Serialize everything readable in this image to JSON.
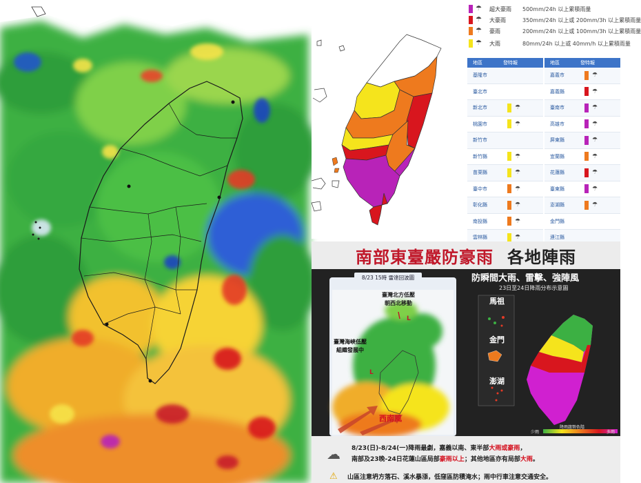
{
  "warning_panel": {
    "legend": [
      {
        "name": "超大豪雨",
        "desc": "500mm/24h 以上累積雨量",
        "color": "#b823b8"
      },
      {
        "name": "大豪雨",
        "desc": "350mm/24h 以上或 200mm/3h 以上累積雨量",
        "color": "#d8161e"
      },
      {
        "name": "豪雨",
        "desc": "200mm/24h 以上或 100mm/3h 以上累積雨量",
        "color": "#ee7a1e"
      },
      {
        "name": "大雨",
        "desc": "80mm/24h 以上或 40mm/h 以上累積雨量",
        "color": "#f5e41c"
      }
    ],
    "table_header": {
      "col1": "地區",
      "col2": "發特報"
    },
    "left_regions": [
      {
        "name": "基隆市",
        "color": ""
      },
      {
        "name": "臺北市",
        "color": ""
      },
      {
        "name": "新北市",
        "color": "#f5e41c"
      },
      {
        "name": "桃園市",
        "color": "#f5e41c"
      },
      {
        "name": "新竹市",
        "color": ""
      },
      {
        "name": "新竹縣",
        "color": "#f5e41c"
      },
      {
        "name": "苗栗縣",
        "color": "#f5e41c"
      },
      {
        "name": "臺中市",
        "color": "#ee7a1e"
      },
      {
        "name": "彰化縣",
        "color": "#ee7a1e"
      },
      {
        "name": "南投縣",
        "color": "#ee7a1e"
      },
      {
        "name": "雲林縣",
        "color": "#f5e41c"
      }
    ],
    "right_regions": [
      {
        "name": "嘉義市",
        "color": "#ee7a1e"
      },
      {
        "name": "嘉義縣",
        "color": "#d8161e"
      },
      {
        "name": "臺南市",
        "color": "#b823b8"
      },
      {
        "name": "高雄市",
        "color": "#b823b8"
      },
      {
        "name": "屏東縣",
        "color": "#b823b8"
      },
      {
        "name": "宜蘭縣",
        "color": "#ee7a1e"
      },
      {
        "name": "花蓮縣",
        "color": "#d8161e"
      },
      {
        "name": "臺東縣",
        "color": "#b823b8"
      },
      {
        "name": "澎湖縣",
        "color": "#ee7a1e"
      },
      {
        "name": "金門縣",
        "color": ""
      },
      {
        "name": "連江縣",
        "color": ""
      }
    ]
  },
  "infographic": {
    "title_red": "南部東臺嚴防豪雨",
    "title_black": "各地陣雨",
    "subtitle": "防瞬間大雨、雷擊、強陣風",
    "dist_caption": "23日至24日降雨分布示意圖",
    "radar_tag": "8/23 15時 雷達回波圖",
    "note_north_low_1": "臺灣北方低壓",
    "note_north_low_2": "朝西北移動",
    "note_strait_low_1": "臺灣海峽低壓",
    "note_strait_low_2": "組織發展中",
    "southwest_wind": "西南風",
    "islands": [
      "馬祖",
      "金門",
      "澎湖"
    ],
    "scale_title": "降雨趨勢色階",
    "scale_low": "少雨",
    "scale_high": "多雨",
    "line1_a": "8/23(日)-8/24(一)降雨最劇，嘉義以南、東半部",
    "line1_b": "大雨或豪雨",
    "line1_c": "，",
    "line2_a": "南部及23晚-24日花蓮山區局部",
    "line2_b": "豪雨以上",
    "line2_c": "；其他地區亦有局部",
    "line2_d": "大雨",
    "line2_e": "。",
    "line3": "山區注意坍方落石、溪水暴漲，低窪區防積淹水；雨中行車注意交通安全。"
  },
  "icons": {
    "rain": "rain-cloud-icon",
    "warning": "warning-triangle-icon",
    "compass": "north-arrow-icon"
  }
}
